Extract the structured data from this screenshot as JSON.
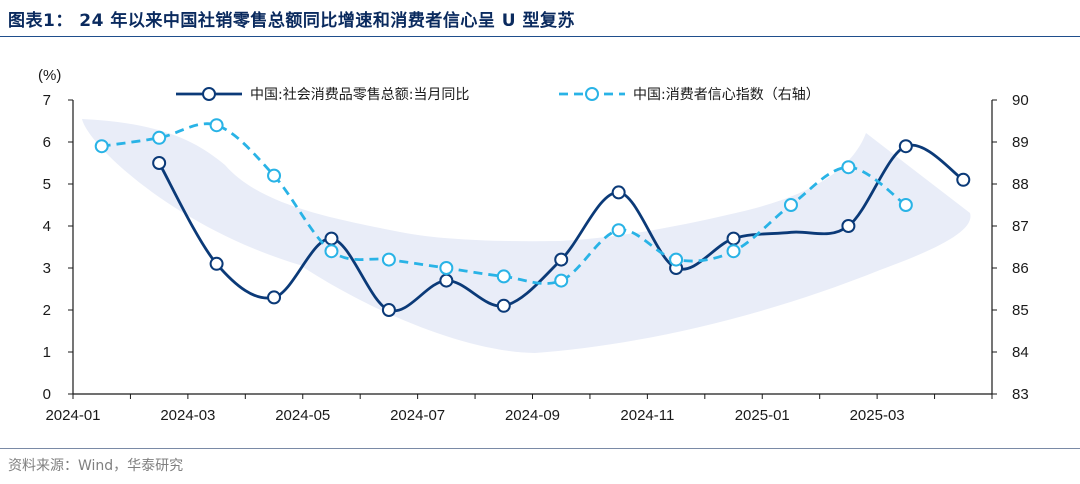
{
  "header": {
    "title": "图表1：  24 年以来中国社销零售总额同比增速和消费者信心呈 U 型复苏"
  },
  "footer": {
    "source": "资料来源：Wind，华泰研究"
  },
  "chart_data": {
    "type": "line",
    "title": "24 年以来中国社销零售总额同比增速和消费者信心呈 U 型复苏",
    "ylabel_left": "(%)",
    "ylim_left": [
      0,
      7
    ],
    "yticks_left": [
      "0",
      "1",
      "2",
      "3",
      "4",
      "5",
      "6",
      "7"
    ],
    "ylim_right": [
      83,
      90
    ],
    "yticks_right": [
      "83",
      "84",
      "85",
      "86",
      "87",
      "88",
      "89",
      "90"
    ],
    "xtick_labels": [
      "2024-01",
      "2024-03",
      "2024-05",
      "2024-07",
      "2024-09",
      "2024-11",
      "2025-01",
      "2025-03"
    ],
    "series": [
      {
        "name": "中国:社会消费品零售总额:当月同比",
        "axis": "left",
        "style": "solid",
        "color": "#0b3a78",
        "x": [
          1.5,
          2.5,
          3.5,
          4.5,
          5.5,
          6.5,
          7.5,
          8.5,
          9.5,
          10.5,
          11.5,
          12.5,
          13.5,
          14.5,
          15.5
        ],
        "values": [
          5.5,
          3.1,
          2.3,
          3.7,
          2.0,
          2.7,
          2.1,
          3.2,
          4.8,
          3.0,
          3.7,
          null,
          4.0,
          5.9,
          5.1
        ]
      },
      {
        "name": "中国:消费者信心指数（右轴）",
        "axis": "right",
        "style": "dashed",
        "color": "#29b3e6",
        "x": [
          0.5,
          1.5,
          2.5,
          3.5,
          4.5,
          5.5,
          6.5,
          7.5,
          8.5,
          9.5,
          10.5,
          11.5,
          12.5,
          13.5,
          14.5
        ],
        "values": [
          88.9,
          89.1,
          89.4,
          88.2,
          86.4,
          86.2,
          86.0,
          85.8,
          85.7,
          86.9,
          86.2,
          86.4,
          87.5,
          88.4,
          87.5
        ]
      }
    ],
    "legend_position": "top-center"
  }
}
